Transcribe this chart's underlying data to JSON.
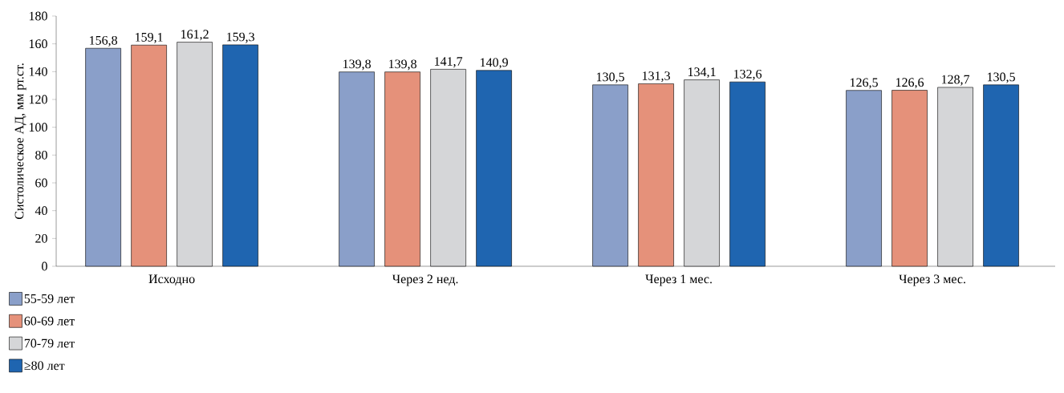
{
  "chart_data": {
    "type": "bar",
    "ylabel": "Систолическое АД, мм рт.ст.",
    "categories": [
      "Исходно",
      "Через 2 нед.",
      "Через 1 мес.",
      "Через 3 мес."
    ],
    "series": [
      {
        "name": "55-59 лет",
        "color": "#8a9fc9",
        "values": [
          156.8,
          139.8,
          130.5,
          126.5
        ],
        "value_labels": [
          "156,8",
          "139,8",
          "130,5",
          "126,5"
        ]
      },
      {
        "name": "60-69 лет",
        "color": "#e5917a",
        "values": [
          159.1,
          139.8,
          131.3,
          126.6
        ],
        "value_labels": [
          "159,1",
          "139,8",
          "131,3",
          "126,6"
        ]
      },
      {
        "name": "70-79 лет",
        "color": "#d5d6d8",
        "values": [
          161.2,
          141.7,
          134.1,
          128.7
        ],
        "value_labels": [
          "161,2",
          "141,7",
          "134,1",
          "128,7"
        ]
      },
      {
        "name": "≥80 лет",
        "color": "#1f65b0",
        "values": [
          159.3,
          140.9,
          132.6,
          130.5
        ],
        "value_labels": [
          "159,3",
          "140,9",
          "132,6",
          "130,5"
        ]
      }
    ],
    "ylim": [
      0,
      180
    ],
    "yticks": [
      0,
      20,
      40,
      60,
      80,
      100,
      120,
      140,
      160,
      180
    ],
    "grid": false,
    "legend": "bottom left"
  }
}
